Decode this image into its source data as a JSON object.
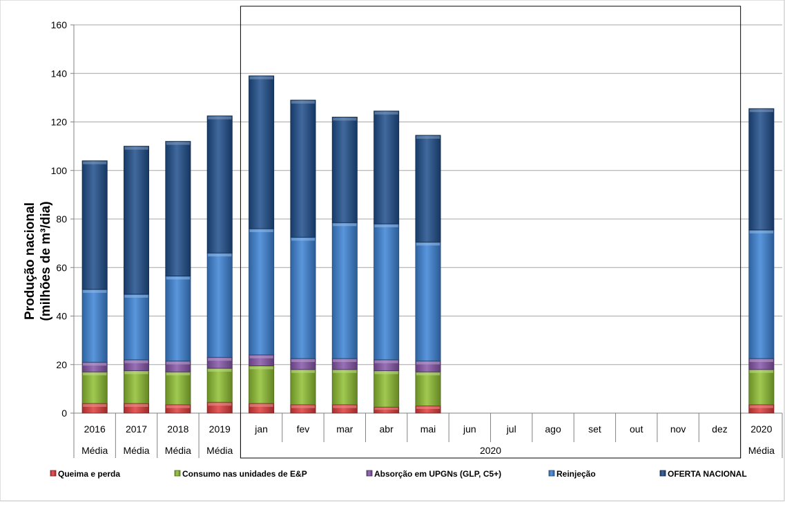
{
  "chart_data": {
    "type": "bar",
    "stacked": true,
    "title": "",
    "ylabel_line1": "Produção  nacional",
    "ylabel_line2": "(milhões de m³/dia)",
    "ylim": [
      0,
      160
    ],
    "yticks": [
      0,
      20,
      40,
      60,
      80,
      100,
      120,
      140,
      160
    ],
    "grid": true,
    "legend_position": "bottom",
    "categories": [
      "2016",
      "2017",
      "2018",
      "2019",
      "jan",
      "fev",
      "mar",
      "abr",
      "mai",
      "jun",
      "jul",
      "ago",
      "set",
      "out",
      "nov",
      "dez",
      "2020"
    ],
    "sublabels": [
      {
        "text": "Média",
        "category": "2016"
      },
      {
        "text": "Média",
        "category": "2017"
      },
      {
        "text": "Média",
        "category": "2018"
      },
      {
        "text": "Média",
        "category": "2019"
      },
      {
        "text": "2020",
        "category": "jan-dez"
      },
      {
        "text": "Média",
        "category": "2020"
      }
    ],
    "series": [
      {
        "name": "Queima e perda",
        "color": "#e03c3c",
        "values": [
          4,
          4,
          3.5,
          4.5,
          4,
          3.5,
          3.5,
          2.5,
          3,
          0,
          0,
          0,
          0,
          0,
          0,
          0,
          3.5
        ]
      },
      {
        "name": "Consumo nas unidades de E&P",
        "color": "#8fbf32",
        "values": [
          13,
          13.5,
          13.5,
          14,
          15.5,
          14.5,
          14.5,
          15,
          14,
          0,
          0,
          0,
          0,
          0,
          0,
          0,
          14.5
        ]
      },
      {
        "name": "Absorção em UPGNs (GLP, C5+)",
        "color": "#8657a9",
        "values": [
          4,
          4.5,
          4.5,
          4.5,
          4.5,
          4.5,
          4.5,
          4.5,
          4.5,
          0,
          0,
          0,
          0,
          0,
          0,
          0,
          4.5
        ]
      },
      {
        "name": "Reinjeção",
        "color": "#3d84d6",
        "values": [
          30,
          27,
          35,
          43,
          52,
          50,
          56,
          56,
          49,
          0,
          0,
          0,
          0,
          0,
          0,
          0,
          53
        ]
      },
      {
        "name": "OFERTA NACIONAL",
        "color": "#1f4e8c",
        "values": [
          53,
          61,
          55.5,
          56.5,
          63,
          56.5,
          43.5,
          46.5,
          44,
          0,
          0,
          0,
          0,
          0,
          0,
          0,
          50
        ]
      }
    ]
  }
}
